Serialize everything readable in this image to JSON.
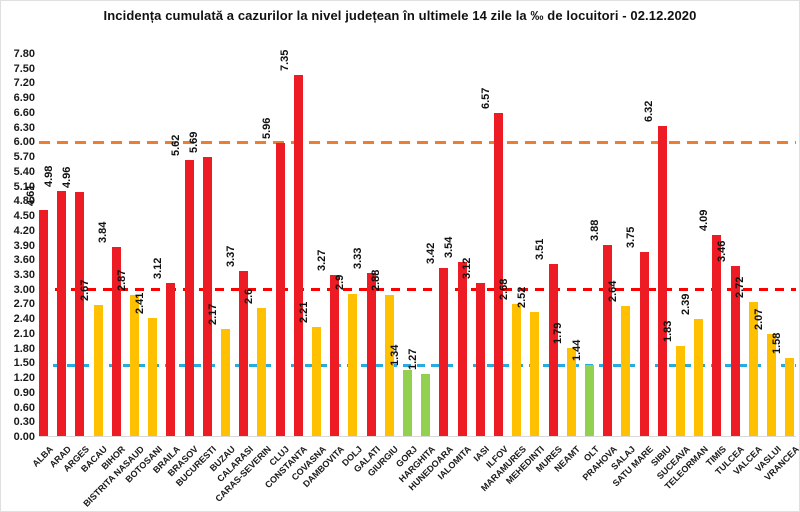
{
  "chart_data": {
    "type": "bar",
    "title": "Incidența cumulată a cazurilor la nivel județean în ultimele 14 zile la ‰ de locuitori - 02.12.2020",
    "xlabel": "",
    "ylabel": "",
    "ylim": [
      0,
      7.8
    ],
    "ytick_step": 0.3,
    "grid": false,
    "legend": "none",
    "categories": [
      "ALBA",
      "ARAD",
      "ARGES",
      "BACAU",
      "BIHOR",
      "BISTRITA NASAUD",
      "BOTOSANI",
      "BRAILA",
      "BRASOV",
      "BUCURESTI",
      "BUZAU",
      "CALARASI",
      "CARAS-SEVERIN",
      "CLUJ",
      "CONSTANTA",
      "COVASNA",
      "DAMBOVITA",
      "DOLJ",
      "GALATI",
      "GIURGIU",
      "GORJ",
      "HARGHITA",
      "HUNEDOARA",
      "IALOMITA",
      "IASI",
      "ILFOV",
      "MARAMURES",
      "MEHEDINTI",
      "MURES",
      "NEAMT",
      "OLT",
      "PRAHOVA",
      "SALAJ",
      "SATU MARE",
      "SIBIU",
      "SUCEAVA",
      "TELEORMAN",
      "TIMIS",
      "TULCEA",
      "VALCEA",
      "VASLUI",
      "VRANCEA"
    ],
    "values": [
      4.61,
      4.98,
      4.96,
      2.67,
      3.84,
      2.87,
      2.41,
      3.12,
      5.62,
      5.69,
      2.17,
      3.37,
      2.6,
      5.96,
      7.35,
      2.21,
      3.27,
      2.9,
      3.33,
      2.88,
      1.34,
      1.27,
      3.42,
      3.54,
      3.12,
      6.57,
      2.68,
      2.52,
      3.51,
      1.79,
      1.44,
      3.88,
      2.64,
      3.75,
      6.32,
      1.83,
      2.39,
      4.09,
      3.46,
      2.72,
      2.07,
      1.58
    ],
    "bar_labels": [
      "4.61",
      "4.98",
      "4.96",
      "2.67",
      "3.84",
      "2.87",
      "2.41",
      "3.12",
      "5.62",
      "5.69",
      "2.17",
      "3.37",
      "2.6",
      "5.96",
      "7.35",
      "2.21",
      "3.27",
      "2.9",
      "3.33",
      "2.88",
      "1.34",
      "1.27",
      "3.42",
      "3.54",
      "3.12",
      "6.57",
      "2.68",
      "2.52",
      "3.51",
      "1.79",
      "1.44",
      "3.88",
      "2.64",
      "3.75",
      "6.32",
      "1.83",
      "2.39",
      "4.09",
      "3.46",
      "2.72",
      "2.07",
      "1.58"
    ],
    "colors": {
      "red": "#ED1C24",
      "yellow": "#FFC000",
      "green": "#92D050"
    },
    "color_rules": {
      "red_min": 3.0,
      "yellow_min": 1.5
    },
    "threshold_lines": [
      {
        "value": 6.0,
        "color": "#ED7D31",
        "style": "dashed"
      },
      {
        "value": 3.0,
        "color": "#FF0000",
        "style": "dashed"
      },
      {
        "value": 1.45,
        "color": "#29ABE2",
        "style": "dashed"
      }
    ]
  }
}
